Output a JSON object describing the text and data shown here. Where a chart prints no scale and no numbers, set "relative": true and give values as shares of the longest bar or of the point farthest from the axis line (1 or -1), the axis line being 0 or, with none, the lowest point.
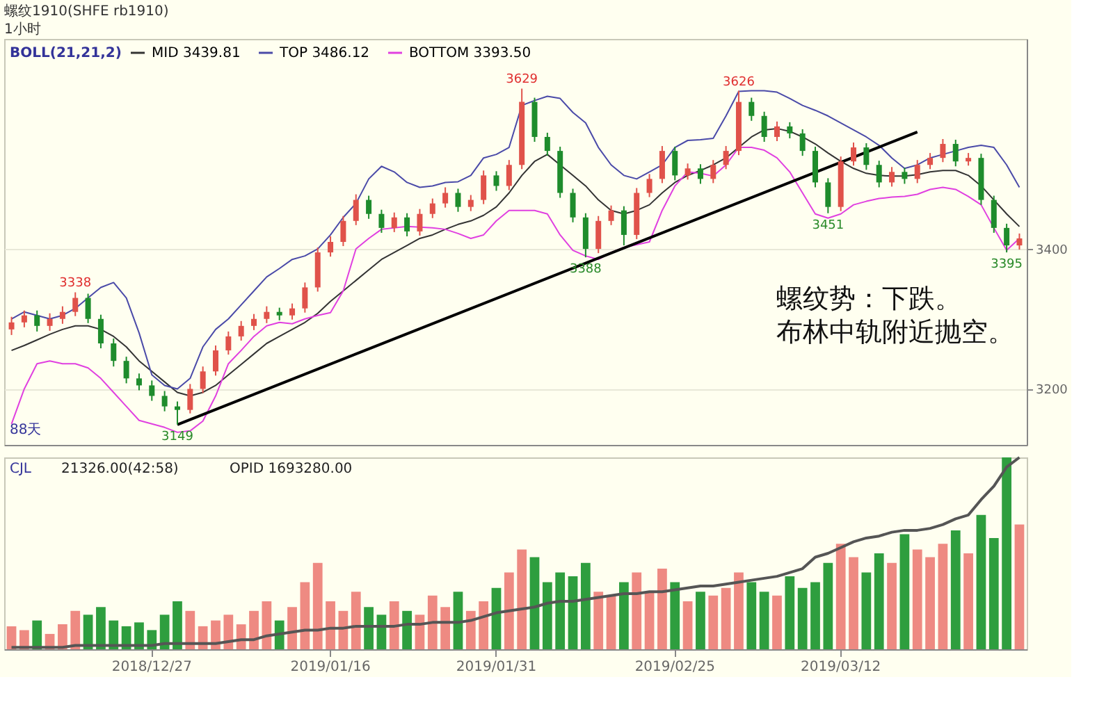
{
  "chart_data": [
    {
      "type": "candlestick",
      "title": "螺纹1910(SHFE rb1910)",
      "subtitle": "1小时",
      "legend_title": "BOLL(21,21,2)",
      "legend": "top left",
      "grid": "y",
      "tick_labels": "y",
      "categories": [
        null,
        null,
        null,
        null,
        null,
        null,
        null,
        null,
        null,
        null,
        null,
        "2018/12/27",
        null,
        null,
        null,
        null,
        null,
        null,
        null,
        null,
        null,
        null,
        null,
        null,
        null,
        "2019/01/16",
        null,
        null,
        null,
        null,
        null,
        null,
        null,
        null,
        null,
        null,
        null,
        null,
        "2019/01/31",
        null,
        null,
        null,
        null,
        null,
        null,
        null,
        null,
        null,
        null,
        null,
        null,
        null,
        "2019/02/25",
        null,
        null,
        null,
        null,
        null,
        null,
        null,
        null,
        null,
        null,
        null,
        null,
        "2019/03/12",
        null,
        null,
        null,
        null,
        null,
        null,
        null,
        null,
        null,
        null,
        null,
        null,
        null,
        null
      ],
      "ylim": [
        3120,
        3700
      ],
      "yticks": [
        3200,
        3400
      ],
      "ohlc": [
        [
          3285,
          3303,
          3277,
          3295
        ],
        [
          3295,
          3312,
          3288,
          3305
        ],
        [
          3305,
          3312,
          3282,
          3290
        ],
        [
          3290,
          3308,
          3283,
          3300
        ],
        [
          3300,
          3318,
          3293,
          3310
        ],
        [
          3310,
          3338,
          3304,
          3330
        ],
        [
          3330,
          3336,
          3294,
          3300
        ],
        [
          3300,
          3306,
          3258,
          3265
        ],
        [
          3265,
          3272,
          3232,
          3240
        ],
        [
          3240,
          3246,
          3208,
          3215
        ],
        [
          3215,
          3222,
          3198,
          3205
        ],
        [
          3205,
          3212,
          3183,
          3190
        ],
        [
          3190,
          3197,
          3168,
          3175
        ],
        [
          3175,
          3182,
          3149,
          3170
        ],
        [
          3170,
          3207,
          3165,
          3200
        ],
        [
          3200,
          3232,
          3194,
          3225
        ],
        [
          3225,
          3262,
          3219,
          3255
        ],
        [
          3255,
          3282,
          3249,
          3275
        ],
        [
          3275,
          3297,
          3269,
          3290
        ],
        [
          3290,
          3307,
          3284,
          3300
        ],
        [
          3300,
          3318,
          3294,
          3310
        ],
        [
          3310,
          3316,
          3298,
          3305
        ],
        [
          3305,
          3322,
          3299,
          3315
        ],
        [
          3315,
          3352,
          3309,
          3345
        ],
        [
          3345,
          3402,
          3339,
          3395
        ],
        [
          3395,
          3418,
          3389,
          3410
        ],
        [
          3410,
          3447,
          3404,
          3440
        ],
        [
          3440,
          3478,
          3434,
          3470
        ],
        [
          3470,
          3476,
          3443,
          3450
        ],
        [
          3450,
          3456,
          3423,
          3430
        ],
        [
          3430,
          3452,
          3424,
          3445
        ],
        [
          3445,
          3451,
          3418,
          3425
        ],
        [
          3425,
          3457,
          3419,
          3450
        ],
        [
          3450,
          3472,
          3444,
          3465
        ],
        [
          3465,
          3488,
          3459,
          3480
        ],
        [
          3480,
          3486,
          3453,
          3460
        ],
        [
          3460,
          3477,
          3454,
          3470
        ],
        [
          3470,
          3512,
          3464,
          3505
        ],
        [
          3505,
          3511,
          3483,
          3490
        ],
        [
          3490,
          3527,
          3484,
          3520
        ],
        [
          3520,
          3629,
          3514,
          3610
        ],
        [
          3610,
          3616,
          3553,
          3560
        ],
        [
          3560,
          3566,
          3533,
          3540
        ],
        [
          3540,
          3546,
          3473,
          3480
        ],
        [
          3480,
          3486,
          3438,
          3445
        ],
        [
          3445,
          3451,
          3388,
          3400
        ],
        [
          3400,
          3447,
          3394,
          3440
        ],
        [
          3440,
          3462,
          3434,
          3455
        ],
        [
          3455,
          3461,
          3405,
          3420
        ],
        [
          3420,
          3487,
          3414,
          3480
        ],
        [
          3480,
          3507,
          3474,
          3500
        ],
        [
          3500,
          3547,
          3494,
          3540
        ],
        [
          3540,
          3546,
          3498,
          3505
        ],
        [
          3505,
          3522,
          3499,
          3515
        ],
        [
          3515,
          3521,
          3493,
          3500
        ],
        [
          3500,
          3527,
          3494,
          3520
        ],
        [
          3520,
          3547,
          3514,
          3540
        ],
        [
          3540,
          3626,
          3534,
          3610
        ],
        [
          3610,
          3616,
          3583,
          3590
        ],
        [
          3590,
          3596,
          3553,
          3560
        ],
        [
          3560,
          3582,
          3554,
          3575
        ],
        [
          3575,
          3581,
          3558,
          3565
        ],
        [
          3565,
          3571,
          3533,
          3540
        ],
        [
          3540,
          3546,
          3488,
          3495
        ],
        [
          3495,
          3501,
          3451,
          3460
        ],
        [
          3460,
          3532,
          3454,
          3525
        ],
        [
          3525,
          3552,
          3519,
          3545
        ],
        [
          3545,
          3551,
          3513,
          3520
        ],
        [
          3520,
          3526,
          3488,
          3495
        ],
        [
          3495,
          3517,
          3489,
          3510
        ],
        [
          3510,
          3516,
          3493,
          3500
        ],
        [
          3500,
          3527,
          3494,
          3520
        ],
        [
          3520,
          3537,
          3514,
          3530
        ],
        [
          3530,
          3557,
          3524,
          3550
        ],
        [
          3550,
          3556,
          3518,
          3525
        ],
        [
          3525,
          3537,
          3519,
          3530
        ],
        [
          3530,
          3536,
          3463,
          3470
        ],
        [
          3470,
          3476,
          3423,
          3430
        ],
        [
          3430,
          3436,
          3395,
          3405
        ],
        [
          3405,
          3422,
          3399,
          3415
        ]
      ],
      "colors": [
        "#e0524a",
        "#e0524a",
        "#1e8c2c",
        "#e0524a",
        "#e0524a",
        "#e0524a",
        "#1e8c2c",
        "#1e8c2c",
        "#1e8c2c",
        "#1e8c2c",
        "#1e8c2c",
        "#1e8c2c",
        "#1e8c2c",
        "#1e8c2c",
        "#e0524a",
        "#e0524a",
        "#e0524a",
        "#e0524a",
        "#e0524a",
        "#e0524a",
        "#e0524a",
        "#1e8c2c",
        "#e0524a",
        "#e0524a",
        "#e0524a",
        "#e0524a",
        "#e0524a",
        "#e0524a",
        "#1e8c2c",
        "#1e8c2c",
        "#e0524a",
        "#1e8c2c",
        "#e0524a",
        "#e0524a",
        "#e0524a",
        "#1e8c2c",
        "#e0524a",
        "#e0524a",
        "#1e8c2c",
        "#e0524a",
        "#e0524a",
        "#1e8c2c",
        "#1e8c2c",
        "#1e8c2c",
        "#1e8c2c",
        "#1e8c2c",
        "#e0524a",
        "#e0524a",
        "#1e8c2c",
        "#e0524a",
        "#e0524a",
        "#e0524a",
        "#1e8c2c",
        "#e0524a",
        "#1e8c2c",
        "#e0524a",
        "#e0524a",
        "#e0524a",
        "#1e8c2c",
        "#1e8c2c",
        "#e0524a",
        "#1e8c2c",
        "#1e8c2c",
        "#1e8c2c",
        "#1e8c2c",
        "#e0524a",
        "#e0524a",
        "#1e8c2c",
        "#1e8c2c",
        "#e0524a",
        "#1e8c2c",
        "#e0524a",
        "#e0524a",
        "#e0524a",
        "#1e8c2c",
        "#e0524a",
        "#1e8c2c",
        "#1e8c2c",
        "#1e8c2c",
        "#e0524a"
      ],
      "series": [
        {
          "type": "line",
          "name": "MID 3439.81",
          "color": "#333333",
          "values": [
            3255,
            3262,
            3270,
            3278,
            3285,
            3290,
            3290,
            3285,
            3275,
            3260,
            3240,
            3225,
            3210,
            3195,
            3190,
            3195,
            3205,
            3220,
            3235,
            3250,
            3265,
            3275,
            3285,
            3295,
            3308,
            3325,
            3340,
            3355,
            3370,
            3385,
            3395,
            3405,
            3415,
            3420,
            3428,
            3435,
            3440,
            3448,
            3460,
            3480,
            3505,
            3525,
            3535,
            3520,
            3505,
            3490,
            3470,
            3455,
            3450,
            3455,
            3463,
            3480,
            3495,
            3505,
            3512,
            3520,
            3530,
            3545,
            3560,
            3570,
            3572,
            3568,
            3560,
            3550,
            3537,
            3525,
            3515,
            3508,
            3505,
            3504,
            3504,
            3506,
            3510,
            3512,
            3512,
            3505,
            3490,
            3470,
            3450,
            3432
          ]
        },
        {
          "type": "line",
          "name": "TOP 3486.12",
          "color": "#4a4aa8",
          "values": [
            3300,
            3310,
            3305,
            3300,
            3305,
            3315,
            3330,
            3345,
            3352,
            3330,
            3280,
            3220,
            3205,
            3200,
            3215,
            3260,
            3285,
            3300,
            3320,
            3340,
            3360,
            3372,
            3385,
            3390,
            3400,
            3420,
            3445,
            3465,
            3500,
            3518,
            3510,
            3495,
            3488,
            3490,
            3495,
            3496,
            3505,
            3530,
            3535,
            3545,
            3605,
            3612,
            3618,
            3615,
            3595,
            3580,
            3545,
            3520,
            3505,
            3500,
            3510,
            3520,
            3545,
            3555,
            3556,
            3558,
            3590,
            3625,
            3626,
            3626,
            3624,
            3615,
            3605,
            3598,
            3590,
            3580,
            3570,
            3560,
            3548,
            3530,
            3515,
            3520,
            3530,
            3535,
            3540,
            3545,
            3548,
            3545,
            3520,
            3488
          ]
        },
        {
          "type": "line",
          "name": "BOTTOM 3393.50",
          "color": "#e040e0",
          "values": [
            3150,
            3200,
            3236,
            3240,
            3236,
            3236,
            3230,
            3215,
            3195,
            3175,
            3155,
            3150,
            3145,
            3138,
            3140,
            3154,
            3190,
            3236,
            3255,
            3275,
            3290,
            3295,
            3293,
            3300,
            3305,
            3309,
            3340,
            3400,
            3415,
            3428,
            3430,
            3432,
            3431,
            3430,
            3428,
            3422,
            3415,
            3420,
            3440,
            3455,
            3455,
            3455,
            3450,
            3420,
            3398,
            3390,
            3385,
            3395,
            3402,
            3406,
            3410,
            3455,
            3490,
            3510,
            3508,
            3504,
            3520,
            3545,
            3545,
            3541,
            3530,
            3510,
            3480,
            3450,
            3444,
            3450,
            3463,
            3468,
            3472,
            3474,
            3475,
            3478,
            3485,
            3488,
            3485,
            3475,
            3463,
            3430,
            3398,
            3415
          ]
        },
        {
          "type": "line",
          "color": "#000000",
          "values": [
            null,
            null,
            null,
            null,
            null,
            null,
            null,
            null,
            null,
            null,
            null,
            null,
            null,
            3149,
            null,
            null,
            null,
            null,
            null,
            null,
            null,
            null,
            null,
            null,
            null,
            null,
            null,
            null,
            null,
            null,
            null,
            null,
            null,
            null,
            null,
            null,
            null,
            null,
            null,
            null,
            null,
            null,
            null,
            null,
            null,
            null,
            null,
            null,
            null,
            null,
            null,
            null,
            null,
            null,
            null,
            null,
            null,
            null,
            null,
            null,
            null,
            null,
            null,
            null,
            null,
            null,
            null,
            null,
            null,
            null,
            null,
            3567,
            null,
            null,
            null,
            null,
            null,
            null,
            null,
            null
          ]
        }
      ],
      "annotations": [
        {
          "text": "3338",
          "y": 3338
        },
        {
          "text": "3149",
          "y": 3149
        },
        {
          "text": "3629",
          "y": 3629
        },
        {
          "text": "3388",
          "y": 3388
        },
        {
          "text": "3626",
          "y": 3626
        },
        {
          "text": "3451",
          "y": 3451
        },
        {
          "text": "3395",
          "y": 3395
        },
        "88天",
        "螺纹势：下跌。",
        "布林中轨附近抛空。"
      ]
    },
    {
      "type": "bar",
      "relative": true,
      "tick_labels": "x",
      "categories": [
        null,
        null,
        null,
        null,
        null,
        null,
        null,
        null,
        null,
        null,
        null,
        "2018/12/27",
        null,
        null,
        null,
        null,
        null,
        null,
        null,
        null,
        null,
        null,
        null,
        null,
        null,
        "2019/01/16",
        null,
        null,
        null,
        null,
        null,
        null,
        null,
        null,
        null,
        null,
        null,
        null,
        "2019/01/31",
        null,
        null,
        null,
        null,
        null,
        null,
        null,
        null,
        null,
        null,
        null,
        null,
        null,
        "2019/02/25",
        null,
        null,
        null,
        null,
        null,
        null,
        null,
        null,
        null,
        null,
        null,
        null,
        "2019/03/12",
        null,
        null,
        null,
        null,
        null,
        null,
        null,
        null,
        null,
        null,
        null,
        null,
        null,
        null
      ],
      "series": [
        {
          "type": "bar",
          "values": [
            0.12,
            0.1,
            0.15,
            0.08,
            0.13,
            0.2,
            0.18,
            0.22,
            0.15,
            0.12,
            0.14,
            0.1,
            0.18,
            0.25,
            0.2,
            0.12,
            0.15,
            0.18,
            0.13,
            0.2,
            0.25,
            0.15,
            0.22,
            0.35,
            0.45,
            0.25,
            0.2,
            0.3,
            0.22,
            0.18,
            0.25,
            0.2,
            0.18,
            0.28,
            0.22,
            0.3,
            0.2,
            0.25,
            0.32,
            0.4,
            0.52,
            0.48,
            0.35,
            0.4,
            0.38,
            0.45,
            0.3,
            0.28,
            0.35,
            0.4,
            0.3,
            0.42,
            0.35,
            0.25,
            0.3,
            0.28,
            0.32,
            0.4,
            0.35,
            0.3,
            0.28,
            0.38,
            0.32,
            0.35,
            0.45,
            0.55,
            0.48,
            0.4,
            0.5,
            0.45,
            0.6,
            0.52,
            0.48,
            0.55,
            0.62,
            0.5,
            0.7,
            0.58,
            1.0,
            0.65
          ],
          "colors": [
            "#ee8a82",
            "#ee8a82",
            "#2e9e3e",
            "#ee8a82",
            "#ee8a82",
            "#ee8a82",
            "#2e9e3e",
            "#2e9e3e",
            "#2e9e3e",
            "#2e9e3e",
            "#2e9e3e",
            "#2e9e3e",
            "#2e9e3e",
            "#2e9e3e",
            "#ee8a82",
            "#ee8a82",
            "#ee8a82",
            "#ee8a82",
            "#ee8a82",
            "#ee8a82",
            "#ee8a82",
            "#2e9e3e",
            "#ee8a82",
            "#ee8a82",
            "#ee8a82",
            "#ee8a82",
            "#ee8a82",
            "#ee8a82",
            "#2e9e3e",
            "#2e9e3e",
            "#ee8a82",
            "#2e9e3e",
            "#ee8a82",
            "#ee8a82",
            "#ee8a82",
            "#2e9e3e",
            "#ee8a82",
            "#ee8a82",
            "#2e9e3e",
            "#ee8a82",
            "#ee8a82",
            "#2e9e3e",
            "#2e9e3e",
            "#2e9e3e",
            "#2e9e3e",
            "#2e9e3e",
            "#ee8a82",
            "#ee8a82",
            "#2e9e3e",
            "#ee8a82",
            "#ee8a82",
            "#ee8a82",
            "#2e9e3e",
            "#ee8a82",
            "#2e9e3e",
            "#ee8a82",
            "#ee8a82",
            "#ee8a82",
            "#2e9e3e",
            "#2e9e3e",
            "#ee8a82",
            "#2e9e3e",
            "#2e9e3e",
            "#2e9e3e",
            "#2e9e3e",
            "#ee8a82",
            "#ee8a82",
            "#2e9e3e",
            "#2e9e3e",
            "#ee8a82",
            "#2e9e3e",
            "#ee8a82",
            "#ee8a82",
            "#ee8a82",
            "#2e9e3e",
            "#ee8a82",
            "#2e9e3e",
            "#2e9e3e",
            "#2e9e3e",
            "#ee8a82"
          ]
        },
        {
          "type": "line",
          "color": "#555555",
          "values": [
            0.01,
            0.01,
            0.01,
            0.01,
            0.01,
            0.02,
            0.02,
            0.02,
            0.02,
            0.02,
            0.02,
            0.02,
            0.03,
            0.03,
            0.03,
            0.03,
            0.03,
            0.04,
            0.05,
            0.05,
            0.07,
            0.08,
            0.09,
            0.1,
            0.1,
            0.11,
            0.11,
            0.12,
            0.12,
            0.12,
            0.12,
            0.13,
            0.13,
            0.14,
            0.14,
            0.14,
            0.15,
            0.17,
            0.19,
            0.2,
            0.21,
            0.22,
            0.24,
            0.25,
            0.25,
            0.26,
            0.27,
            0.28,
            0.29,
            0.29,
            0.3,
            0.3,
            0.31,
            0.32,
            0.33,
            0.33,
            0.34,
            0.35,
            0.36,
            0.37,
            0.38,
            0.4,
            0.42,
            0.48,
            0.5,
            0.53,
            0.56,
            0.58,
            0.59,
            0.61,
            0.62,
            0.62,
            0.63,
            0.65,
            0.68,
            0.7,
            0.78,
            0.85,
            0.95,
            1.0
          ]
        }
      ],
      "annotations": [
        "CJL",
        "21326.00(42:58)",
        "OPID 1693280.00"
      ]
    }
  ]
}
